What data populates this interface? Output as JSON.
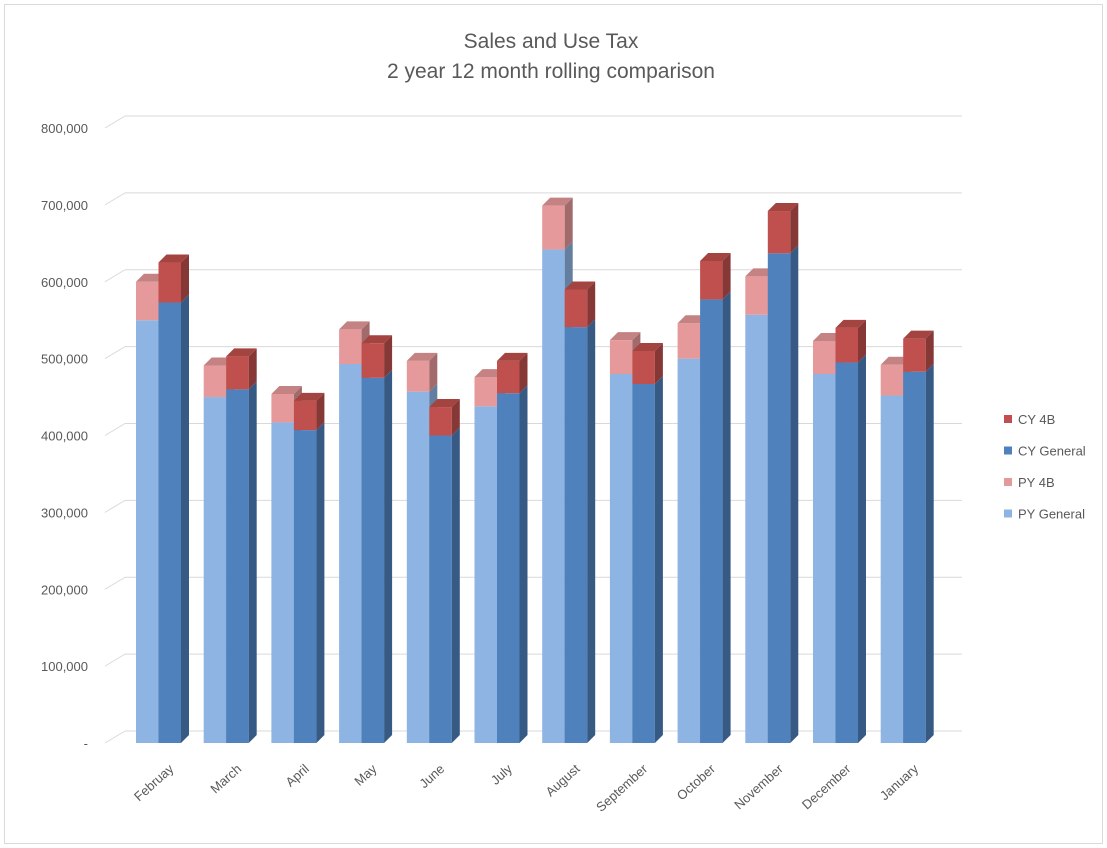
{
  "chart_data": {
    "type": "bar",
    "stacked": true,
    "three_d": true,
    "title": [
      "Sales and Use Tax",
      "2 year 12 month rolling comparison"
    ],
    "xlabel": "",
    "ylabel": "",
    "ylim": [
      0,
      800000
    ],
    "yticks": [
      0,
      100000,
      200000,
      300000,
      400000,
      500000,
      600000,
      700000,
      800000
    ],
    "ytick_labels": [
      "-",
      "100,000",
      "200,000",
      "300,000",
      "400,000",
      "500,000",
      "600,000",
      "700,000",
      "800,000"
    ],
    "categories": [
      "Februay",
      "March",
      "April",
      "May",
      "June",
      "July",
      "August",
      "September",
      "October",
      "November",
      "December",
      "January"
    ],
    "groups": [
      {
        "name": "PY",
        "series": [
          {
            "name": "PY General",
            "color": "#8db4e2",
            "values": [
              550000,
              450000,
              417000,
              493000,
              457000,
              438000,
              642000,
              480000,
              500000,
              557000,
              480000,
              452000
            ]
          },
          {
            "name": "PY 4B",
            "color": "#e6999a",
            "values": [
              50000,
              41000,
              37000,
              45000,
              40000,
              38000,
              57000,
              44000,
              46000,
              50000,
              43000,
              40000
            ]
          }
        ]
      },
      {
        "name": "CY",
        "series": [
          {
            "name": "CY General",
            "color": "#4f81bd",
            "values": [
              573000,
              460000,
              407000,
              475000,
              400000,
              455000,
              541000,
              467000,
              577000,
              637000,
              495000,
              483000
            ]
          },
          {
            "name": "CY 4B",
            "color": "#c0504d",
            "values": [
              52000,
              43000,
              38000,
              45000,
              37000,
              42000,
              49000,
              43000,
              50000,
              55000,
              45000,
              43000
            ]
          }
        ]
      }
    ],
    "legend": {
      "position": "right",
      "entries": [
        {
          "name": "CY 4B",
          "color": "#c0504d"
        },
        {
          "name": "CY General",
          "color": "#4f81bd"
        },
        {
          "name": "PY 4B",
          "color": "#e6999a"
        },
        {
          "name": "PY General",
          "color": "#8db4e2"
        }
      ]
    },
    "grid": true
  }
}
